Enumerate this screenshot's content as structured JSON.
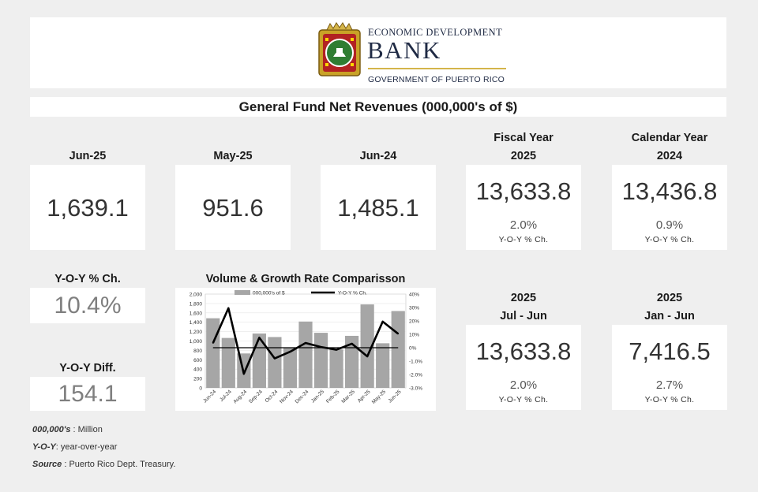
{
  "header": {
    "brand_top": "ECONOMIC DEVELOPMENT",
    "brand_bank": "BANK",
    "brand_bottom": "GOVERNMENT OF PUERTO RICO"
  },
  "title": "General Fund Net Revenues (000,000's of $)",
  "cards": {
    "jun25": {
      "label": "Jun-25",
      "value": "1,639.1"
    },
    "may25": {
      "label": "May-25",
      "value": "951.6"
    },
    "jun24": {
      "label": "Jun-24",
      "value": "1,485.1"
    },
    "fiscal": {
      "label1": "Fiscal Year",
      "label2": "2025",
      "value": "13,633.8",
      "pct": "2.0%",
      "note": "Y-O-Y % Ch."
    },
    "calendar": {
      "label1": "Calendar Year",
      "label2": "2024",
      "value": "13,436.8",
      "pct": "0.9%",
      "note": "Y-O-Y % Ch."
    },
    "jul_jun": {
      "label1": "2025",
      "label2": "Jul - Jun",
      "value": "13,633.8",
      "pct": "2.0%",
      "note": "Y-O-Y % Ch."
    },
    "jan_jun": {
      "label1": "2025",
      "label2": "Jan - Jun",
      "value": "7,416.5",
      "pct": "2.7%",
      "note": "Y-O-Y % Ch."
    }
  },
  "yoy_pct": {
    "label": "Y-O-Y % Ch.",
    "value": "10.4%"
  },
  "yoy_diff": {
    "label": "Y-O-Y Diff.",
    "value": "154.1"
  },
  "notes": {
    "n1_key": "000,000's",
    "n1_text": " : Million",
    "n2_key": "Y-O-Y",
    "n2_text": ": year-over-year",
    "n3_key": "Source",
    "n3_text": " : Puerto Rico Dept. Treasury."
  },
  "chart_data": {
    "type": "bar+line",
    "title": "Volume & Growth Rate Comparisson",
    "categories": [
      "Jun-24",
      "Jul-24",
      "Aug-24",
      "Sep-24",
      "Oct-24",
      "Nov-24",
      "Dec-24",
      "Jan-25",
      "Feb-25",
      "Mar-25",
      "Apr-25",
      "May-25",
      "Jun-25"
    ],
    "series": [
      {
        "name": "000,000's of $",
        "kind": "bar",
        "axis": "left",
        "color": "#a6a6a6",
        "values": [
          1485,
          1065,
          735,
          1160,
          1085,
          850,
          1415,
          1175,
          820,
          1110,
          1780,
          952,
          1639
        ]
      },
      {
        "name": "Y-O-Y % Ch.",
        "kind": "line",
        "axis": "right",
        "color": "#000000",
        "values": [
          3.5,
          29.5,
          -19.5,
          7.5,
          -8,
          -3,
          3.5,
          0.5,
          -1.5,
          3,
          -6.5,
          19.5,
          10.4
        ]
      }
    ],
    "ylim_left": [
      0,
      2000
    ],
    "yticks_left": [
      "0",
      "200",
      "400",
      "600",
      "800",
      "1,000",
      "1,200",
      "1,400",
      "1,600",
      "1,800",
      "2,000"
    ],
    "ylim_right": [
      -30,
      40
    ],
    "yticks_right": [
      "-3.0%",
      "-2.0%",
      "-1.0%",
      "0%",
      "10%",
      "20%",
      "30%",
      "40%"
    ],
    "legend": "top"
  }
}
